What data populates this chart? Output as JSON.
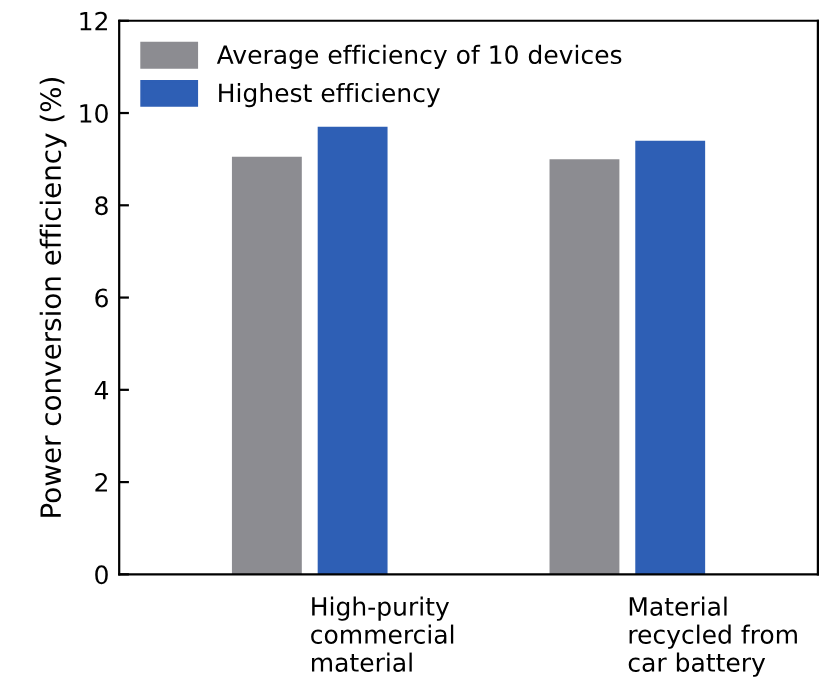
{
  "chart_data": {
    "type": "bar",
    "ylabel": "Power conversion efficiency (%)",
    "categories": [
      "High-purity\ncommercial\nmaterial",
      "Material\nrecycled from\ncar battery"
    ],
    "series": [
      {
        "name": "Average efficiency of 10 devices",
        "color": "#8c8c91",
        "values": [
          9.05,
          9.0
        ]
      },
      {
        "name": "Highest efficiency",
        "color": "#2e5fb5",
        "values": [
          9.7,
          9.4
        ]
      }
    ],
    "ylim": [
      0,
      12
    ],
    "yticks": [
      0,
      2,
      4,
      6,
      8,
      10,
      12
    ],
    "grid": false,
    "legend": "top left"
  }
}
